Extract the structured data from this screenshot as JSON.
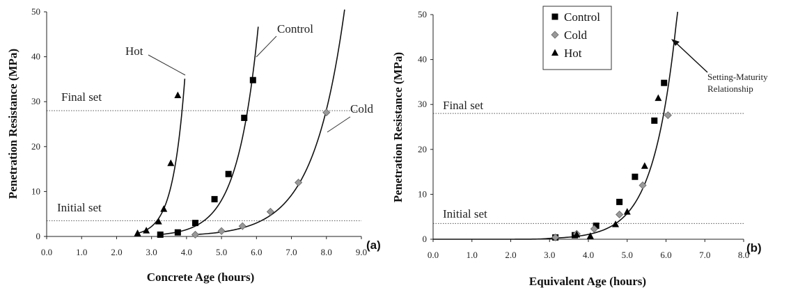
{
  "chart_data": [
    {
      "type": "scatter",
      "panel_label": "(a)",
      "xlabel": "Concrete Age  (hours)",
      "ylabel": "Penetration Resistance (MPa)",
      "xlim": [
        0,
        9
      ],
      "ylim": [
        0,
        50
      ],
      "x_ticks": [
        "0.0",
        "1.0",
        "2.0",
        "3.0",
        "4.0",
        "5.0",
        "6.0",
        "7.0",
        "8.0",
        "9.0"
      ],
      "y_ticks": [
        "0",
        "10",
        "20",
        "30",
        "40",
        "50"
      ],
      "reference_lines": [
        {
          "label": "Final set",
          "y": 28
        },
        {
          "label": "Initial set",
          "y": 3.5
        }
      ],
      "series": [
        {
          "name": "Hot",
          "marker": "triangle",
          "color": "#000000",
          "points": [
            [
              2.6,
              0.7
            ],
            [
              2.85,
              1.3
            ],
            [
              3.2,
              3.3
            ],
            [
              3.35,
              6.1
            ],
            [
              3.55,
              16.3
            ],
            [
              3.75,
              31.4
            ]
          ],
          "curve": {
            "x0": 2.6,
            "a": 0.7,
            "k": 2.9,
            "x_end": 3.95
          }
        },
        {
          "name": "Control",
          "marker": "square",
          "color": "#000000",
          "points": [
            [
              3.25,
              0.4
            ],
            [
              3.75,
              0.9
            ],
            [
              4.25,
              3.0
            ],
            [
              4.8,
              8.3
            ],
            [
              5.2,
              13.9
            ],
            [
              5.65,
              26.4
            ],
            [
              5.9,
              34.8
            ]
          ],
          "curve": {
            "x0": 3.2,
            "a": 0.4,
            "k": 1.67,
            "x_end": 6.05
          }
        },
        {
          "name": "Cold",
          "marker": "diamond",
          "color": "#999999",
          "points": [
            [
              4.25,
              0.4
            ],
            [
              5.0,
              1.2
            ],
            [
              5.6,
              2.3
            ],
            [
              6.4,
              5.5
            ],
            [
              7.2,
              12.0
            ],
            [
              8.0,
              27.6
            ]
          ],
          "curve": {
            "x0": 4.2,
            "a": 0.4,
            "k": 1.12,
            "x_end": 9.0
          }
        }
      ],
      "annotations": [
        "Hot",
        "Control",
        "Cold"
      ]
    },
    {
      "type": "scatter",
      "panel_label": "(b)",
      "xlabel": "Equivalent Age (hours)",
      "ylabel": "Penetration Resistance (MPa)",
      "xlim": [
        0,
        8
      ],
      "ylim": [
        0,
        50
      ],
      "x_ticks": [
        "0.0",
        "1.0",
        "2.0",
        "3.0",
        "4.0",
        "5.0",
        "6.0",
        "7.0",
        "8.0"
      ],
      "y_ticks": [
        "0",
        "10",
        "20",
        "30",
        "40",
        "50"
      ],
      "legend": {
        "position": "top-center",
        "entries": [
          "Control",
          "Cold",
          "Hot"
        ]
      },
      "reference_lines": [
        {
          "label": "Final set",
          "y": 28
        },
        {
          "label": "Initial set",
          "y": 3.5
        }
      ],
      "series": [
        {
          "name": "Control",
          "marker": "square",
          "color": "#000000",
          "points": [
            [
              3.15,
              0.4
            ],
            [
              3.65,
              0.9
            ],
            [
              4.2,
              3.0
            ],
            [
              4.8,
              8.3
            ],
            [
              5.2,
              13.9
            ],
            [
              5.7,
              26.4
            ],
            [
              5.95,
              34.8
            ]
          ]
        },
        {
          "name": "Cold",
          "marker": "diamond",
          "color": "#999999",
          "points": [
            [
              3.15,
              0.4
            ],
            [
              3.7,
              1.2
            ],
            [
              4.15,
              2.3
            ],
            [
              4.8,
              5.5
            ],
            [
              5.4,
              12.0
            ],
            [
              6.05,
              27.6
            ]
          ]
        },
        {
          "name": "Hot",
          "marker": "triangle",
          "color": "#000000",
          "points": [
            [
              4.05,
              0.7
            ],
            [
              3.7,
              1.0
            ],
            [
              4.7,
              3.3
            ],
            [
              5.0,
              6.1
            ],
            [
              5.45,
              16.3
            ],
            [
              5.8,
              31.4
            ]
          ]
        }
      ],
      "fit_curve": {
        "label": "Setting-Maturity Relationship",
        "x_start": 0,
        "x0": 3.0,
        "a": 0.2,
        "k": 1.68,
        "x_end": 6.3
      },
      "annotations": [
        "Setting-Maturity",
        "Relationship"
      ]
    }
  ]
}
